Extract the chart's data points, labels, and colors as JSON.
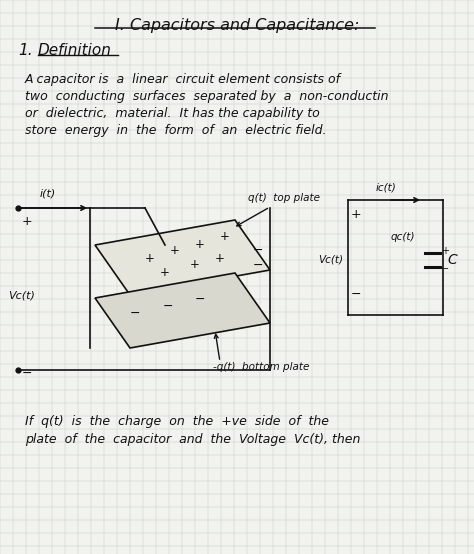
{
  "page_color": "#f2f2ee",
  "grid_color": "#c5d5c5",
  "title": "I. Capacitors and Capacitance:",
  "section_num": "1.",
  "section_text": "Definition",
  "para1_lines": [
    "A capacitor is  a  linear  circuit element consists of",
    "two  conducting  surfaces  separated by  a  non-conductin",
    "or  dielectric,  material.  It has the capability to",
    "store  energy  in  the  form  of  an  electric field."
  ],
  "bottom_text_lines": [
    "If  q(t)  is  the  charge  on  the  +ve  side  of  the",
    "plate  of  the  capacitor  and  the  Voltage  Vc(t), then"
  ],
  "text_color": "#111111",
  "line_color": "#111111",
  "title_fontsize": 11.5,
  "section_fontsize": 11,
  "body_fontsize": 9,
  "diagram_fontsize": 8
}
